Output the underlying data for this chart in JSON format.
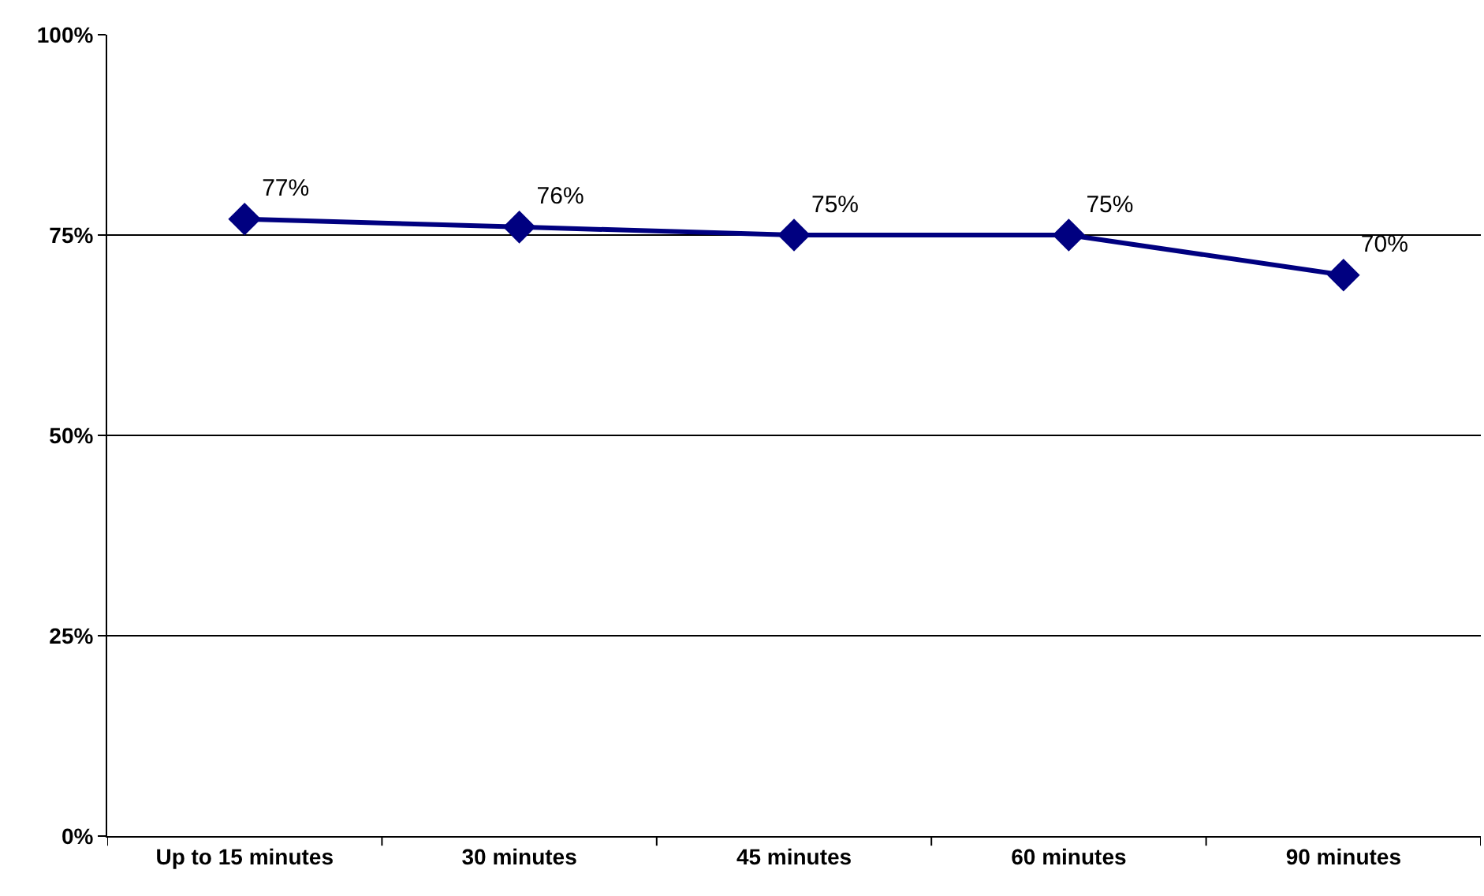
{
  "chart_data": {
    "type": "line",
    "categories": [
      "Up to 15 minutes",
      "30 minutes",
      "45 minutes",
      "60 minutes",
      "90 minutes"
    ],
    "series": [
      {
        "color": "#000080",
        "values": [
          77,
          76,
          75,
          75,
          70
        ],
        "value_labels": [
          "77%",
          "76%",
          "75%",
          "75%",
          "70%"
        ]
      }
    ],
    "ylim": [
      0,
      100
    ],
    "yticks": [
      {
        "value": 0,
        "label": "0%"
      },
      {
        "value": 25,
        "label": "25%"
      },
      {
        "value": 50,
        "label": "50%"
      },
      {
        "value": 75,
        "label": "75%"
      },
      {
        "value": 100,
        "label": "100%"
      }
    ],
    "grid": "y",
    "marker": "diamond",
    "line_style": "solid"
  }
}
